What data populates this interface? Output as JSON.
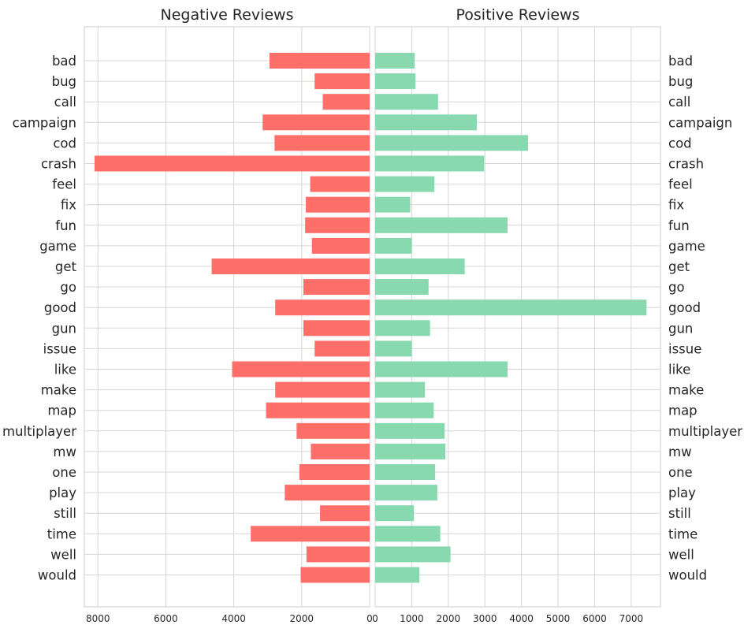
{
  "chart_data": [
    {
      "type": "bar",
      "orientation": "horizontal",
      "title": "Negative Reviews",
      "xlabel": "",
      "ylabel": "",
      "x_inverted": true,
      "xlim": [
        8400,
        0
      ],
      "xticks": [
        8000,
        6000,
        4000,
        2000,
        0
      ],
      "grid": true,
      "color": "#ff6f69",
      "category_labels_side": "left",
      "categories": [
        "bad",
        "bug",
        "call",
        "campaign",
        "cod",
        "crash",
        "feel",
        "fix",
        "fun",
        "game",
        "get",
        "go",
        "good",
        "gun",
        "issue",
        "like",
        "make",
        "map",
        "multiplayer",
        "mw",
        "one",
        "play",
        "still",
        "time",
        "well",
        "would"
      ],
      "values": [
        2950,
        1620,
        1380,
        3150,
        2800,
        8100,
        1750,
        1880,
        1900,
        1700,
        4650,
        1950,
        2780,
        1950,
        1620,
        4050,
        2780,
        3050,
        2150,
        1730,
        2070,
        2500,
        1460,
        3500,
        1860,
        2030
      ]
    },
    {
      "type": "bar",
      "orientation": "horizontal",
      "title": "Positive Reviews",
      "xlabel": "",
      "ylabel": "",
      "xlim": [
        0,
        7800
      ],
      "xticks": [
        0,
        1000,
        2000,
        3000,
        4000,
        5000,
        6000,
        7000
      ],
      "grid": true,
      "color": "#88d8b0",
      "category_labels_side": "right",
      "categories": [
        "bad",
        "bug",
        "call",
        "campaign",
        "cod",
        "crash",
        "feel",
        "fix",
        "fun",
        "game",
        "get",
        "go",
        "good",
        "gun",
        "issue",
        "like",
        "make",
        "map",
        "multiplayer",
        "mw",
        "one",
        "play",
        "still",
        "time",
        "well",
        "would"
      ],
      "values": [
        1080,
        1100,
        1720,
        2780,
        4180,
        2980,
        1620,
        960,
        3620,
        1000,
        2450,
        1460,
        7420,
        1500,
        1000,
        3620,
        1360,
        1600,
        1900,
        1920,
        1640,
        1700,
        1060,
        1780,
        2060,
        1210
      ]
    }
  ]
}
